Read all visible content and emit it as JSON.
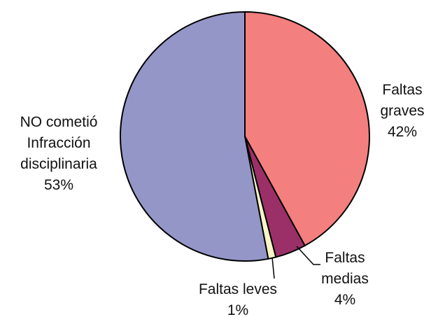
{
  "chart_data": {
    "type": "pie",
    "categories": [
      "Faltas\ngraves",
      "Faltas\nmedias",
      "Faltas leves",
      "NO cometió\nInfracción\ndisciplinaria"
    ],
    "values": [
      42,
      4,
      1,
      53
    ],
    "value_labels": [
      "42%",
      "4%",
      "1%",
      "53%"
    ],
    "colors": [
      "#f47f7f",
      "#9b3068",
      "#f8f6c8",
      "#9596c8"
    ]
  }
}
